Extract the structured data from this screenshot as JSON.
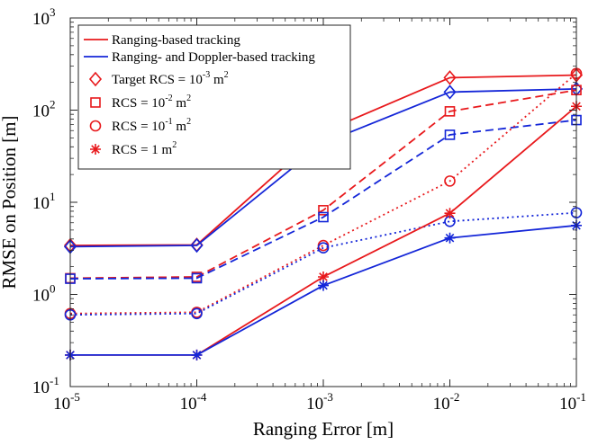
{
  "chart_data": {
    "type": "line",
    "xlabel": "Ranging Error [m]",
    "ylabel": "RMSE on Position [m]",
    "x_scale": "log",
    "y_scale": "log",
    "xlim": [
      1e-05,
      0.1
    ],
    "ylim": [
      0.1,
      1000
    ],
    "grid": false,
    "legend_position": "top-left",
    "x": [
      1e-05,
      0.0001,
      0.001,
      0.01,
      0.1
    ],
    "xtick_labels": [
      {
        "base": "10",
        "exp": "-5"
      },
      {
        "base": "10",
        "exp": "-4"
      },
      {
        "base": "10",
        "exp": "-3"
      },
      {
        "base": "10",
        "exp": "-2"
      },
      {
        "base": "10",
        "exp": "-1"
      }
    ],
    "ytick_labels": [
      {
        "base": "10",
        "exp": "-1"
      },
      {
        "base": "10",
        "exp": "0"
      },
      {
        "base": "10",
        "exp": "1"
      },
      {
        "base": "10",
        "exp": "2"
      },
      {
        "base": "10",
        "exp": "3"
      }
    ],
    "legend": [
      {
        "kind": "line",
        "color": "#e8191c",
        "text": "Ranging-based tracking"
      },
      {
        "kind": "line",
        "color": "#1426d8",
        "text": "Ranging- and Doppler-based tracking"
      },
      {
        "kind": "marker",
        "marker": "diamond",
        "color": "#e8191c",
        "text": "Target RCS = 10",
        "exp": "-3",
        "unit": "m",
        "unit_exp": "2"
      },
      {
        "kind": "marker",
        "marker": "square",
        "color": "#e8191c",
        "text": "RCS = 10",
        "exp": "-2",
        "unit": "m",
        "unit_exp": "2"
      },
      {
        "kind": "marker",
        "marker": "circle",
        "color": "#e8191c",
        "text": "RCS = 10",
        "exp": "-1",
        "unit": "m",
        "unit_exp": "2"
      },
      {
        "kind": "marker",
        "marker": "asterisk",
        "color": "#e8191c",
        "text": "RCS = 1 m",
        "exp": "",
        "unit": "",
        "unit_exp": "2"
      }
    ],
    "series": [
      {
        "method": "ranging",
        "rcs": "0.001",
        "color": "#e8191c",
        "dash": "solid",
        "marker": "diamond",
        "values": [
          3.4,
          3.45,
          58,
          225,
          240
        ]
      },
      {
        "method": "ranging-doppler",
        "rcs": "0.001",
        "color": "#1426d8",
        "dash": "solid",
        "marker": "diamond",
        "values": [
          3.3,
          3.4,
          44,
          157,
          170
        ]
      },
      {
        "method": "ranging",
        "rcs": "0.01",
        "color": "#e8191c",
        "dash": "dashed",
        "marker": "square",
        "values": [
          1.5,
          1.55,
          8.2,
          97,
          165
        ]
      },
      {
        "method": "ranging-doppler",
        "rcs": "0.01",
        "color": "#1426d8",
        "dash": "dashed",
        "marker": "square",
        "values": [
          1.48,
          1.5,
          6.9,
          54,
          78
        ]
      },
      {
        "method": "ranging",
        "rcs": "0.1",
        "color": "#e8191c",
        "dash": "dotted",
        "marker": "circle",
        "values": [
          0.62,
          0.64,
          3.4,
          17,
          250
        ]
      },
      {
        "method": "ranging-doppler",
        "rcs": "0.1",
        "color": "#1426d8",
        "dash": "dotted",
        "marker": "circle",
        "values": [
          0.6,
          0.62,
          3.2,
          6.2,
          7.7
        ]
      },
      {
        "method": "ranging",
        "rcs": "1",
        "color": "#e8191c",
        "dash": "solid",
        "marker": "asterisk",
        "values": [
          0.22,
          0.22,
          1.55,
          7.6,
          110
        ]
      },
      {
        "method": "ranging-doppler",
        "rcs": "1",
        "color": "#1426d8",
        "dash": "solid",
        "marker": "asterisk",
        "values": [
          0.22,
          0.22,
          1.25,
          4.1,
          5.6
        ]
      }
    ]
  }
}
